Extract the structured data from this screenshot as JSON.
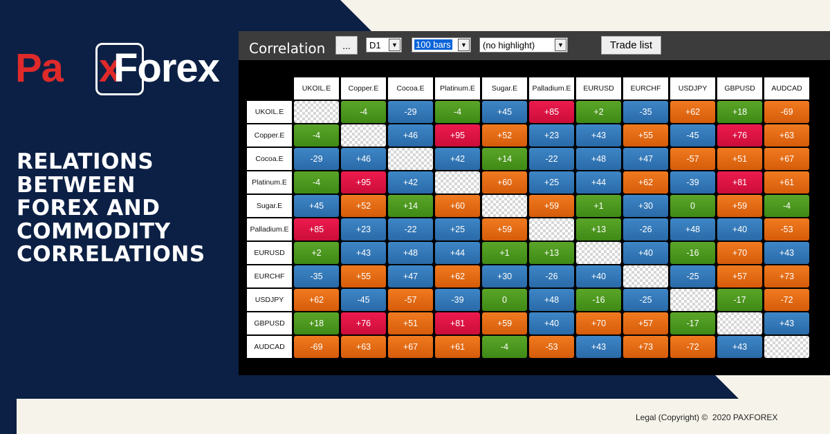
{
  "brand": {
    "logo_left": "Pa",
    "logo_x": "x",
    "logo_right": "Forex",
    "colors": {
      "navy": "#0c2045",
      "red": "#e02a2a",
      "white": "#ffffff"
    }
  },
  "headline": [
    "RELATIONS",
    "BETWEEN",
    "FOREX AND",
    "COMMODITY",
    "CORRELATIONS"
  ],
  "toolbar": {
    "title": "Correlation",
    "more_button": "...",
    "timeframe": "D1",
    "bars": "100 bars",
    "highlight": "(no highlight)",
    "trade_list_button": "Trade list",
    "arrow_icon": "chevron-down-icon"
  },
  "matrix": {
    "symbols": [
      "UKOIL.E",
      "Copper.E",
      "Cocoa.E",
      "Platinum.E",
      "Sugar.E",
      "Palladium.E",
      "EURUSD",
      "EURCHF",
      "USDJPY",
      "GBPUSD",
      "AUDCAD"
    ],
    "rows": [
      [
        "",
        "-4",
        "-29",
        "-4",
        "+45",
        "+85",
        "+2",
        "-35",
        "+62",
        "+18",
        "-69"
      ],
      [
        "-4",
        "",
        "+46",
        "+95",
        "+52",
        "+23",
        "+43",
        "+55",
        "-45",
        "+76",
        "+63"
      ],
      [
        "-29",
        "+46",
        "",
        "+42",
        "+14",
        "-22",
        "+48",
        "+47",
        "-57",
        "+51",
        "+67"
      ],
      [
        "-4",
        "+95",
        "+42",
        "",
        "+60",
        "+25",
        "+44",
        "+62",
        "-39",
        "+81",
        "+61"
      ],
      [
        "+45",
        "+52",
        "+14",
        "+60",
        "",
        "+59",
        "+1",
        "+30",
        "0",
        "+59",
        "-4"
      ],
      [
        "+85",
        "+23",
        "-22",
        "+25",
        "+59",
        "",
        "+13",
        "-26",
        "+48",
        "+40",
        "-53"
      ],
      [
        "+2",
        "+43",
        "+48",
        "+44",
        "+1",
        "+13",
        "",
        "+40",
        "-16",
        "+70",
        "+43"
      ],
      [
        "-35",
        "+55",
        "+47",
        "+62",
        "+30",
        "-26",
        "+40",
        "",
        "-25",
        "+57",
        "+73"
      ],
      [
        "+62",
        "-45",
        "-57",
        "-39",
        "0",
        "+48",
        "-16",
        "-25",
        "",
        "-17",
        "-72"
      ],
      [
        "+18",
        "+76",
        "+51",
        "+81",
        "+59",
        "+40",
        "+70",
        "+57",
        "-17",
        "",
        "+43"
      ],
      [
        "-69",
        "+63",
        "+67",
        "+61",
        "-4",
        "-53",
        "+43",
        "+73",
        "-72",
        "+43",
        ""
      ]
    ],
    "colors": {
      "blue": "#2f74b3",
      "orange": "#e46a14",
      "green": "#4c9a1f",
      "red": "#e01244"
    }
  },
  "footer": {
    "legal": "Legal (Copyright) ©  2020 PAXFOREX"
  }
}
